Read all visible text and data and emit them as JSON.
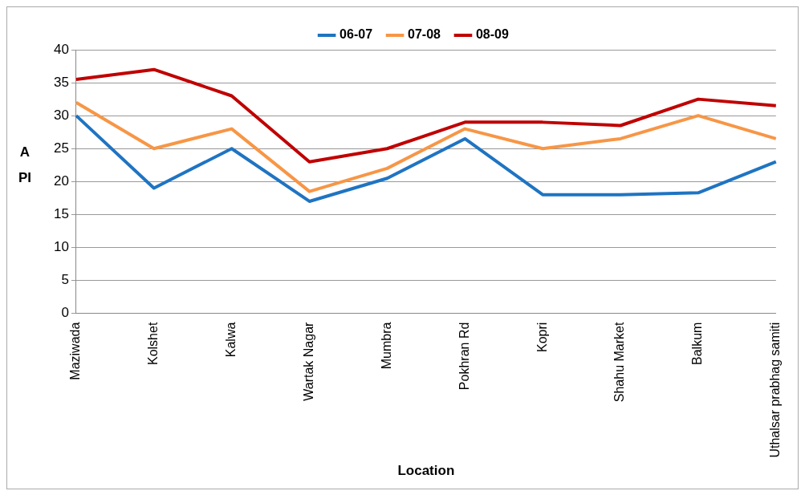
{
  "chart_data": {
    "type": "line",
    "xlabel": "Location",
    "ylabel": "API",
    "categories": [
      "Maziwada",
      "Kolshet",
      "Kalwa",
      "Wartak Nagar",
      "Mumbra",
      "Pokhran Rd",
      "Kopri",
      "Shahu Market",
      "Balkum",
      "Uthalsar prabhag samiti"
    ],
    "series": [
      {
        "name": "06-07",
        "color": "#1f74c2",
        "values": [
          30,
          19,
          25,
          17,
          20.5,
          26.5,
          18,
          18,
          18.3,
          23
        ]
      },
      {
        "name": "07-08",
        "color": "#f79646",
        "values": [
          32,
          25,
          28,
          18.5,
          22,
          28,
          25,
          26.5,
          30,
          26.5
        ]
      },
      {
        "name": "08-09",
        "color": "#c00000",
        "values": [
          35.5,
          37,
          33,
          23,
          25,
          29,
          29,
          28.5,
          32.5,
          31.5
        ]
      }
    ],
    "ylim": [
      0,
      40
    ],
    "yticks": [
      0,
      5,
      10,
      15,
      20,
      25,
      30,
      35,
      40
    ],
    "grid": "y",
    "legend": "top",
    "marker": "none"
  }
}
